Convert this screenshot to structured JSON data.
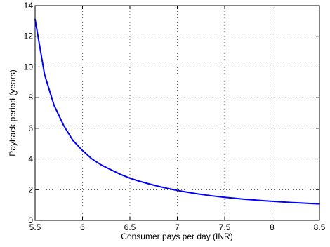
{
  "chart_data": {
    "type": "line",
    "title": "",
    "xlabel": "Consumer pays per day (INR)",
    "ylabel": "Payback period (years)",
    "xlim": [
      5.5,
      8.5
    ],
    "ylim": [
      0,
      14
    ],
    "xticks": [
      5.5,
      6,
      6.5,
      7,
      7.5,
      8,
      8.5
    ],
    "yticks": [
      0,
      2,
      4,
      6,
      8,
      10,
      12,
      14
    ],
    "xtick_labels": [
      "5.5",
      "6",
      "6.5",
      "7",
      "7.5",
      "8",
      "8.5"
    ],
    "ytick_labels": [
      "0",
      "2",
      "4",
      "6",
      "8",
      "10",
      "12",
      "14"
    ],
    "grid": true,
    "series": [
      {
        "color": "#0000ff",
        "x": [
          5.5,
          5.6,
          5.7,
          5.8,
          5.9,
          6.0,
          6.1,
          6.2,
          6.3,
          6.4,
          6.5,
          6.6,
          6.7,
          6.8,
          6.9,
          7.0,
          7.1,
          7.2,
          7.3,
          7.4,
          7.5,
          7.6,
          7.7,
          7.8,
          7.9,
          8.0,
          8.1,
          8.2,
          8.3,
          8.4,
          8.5
        ],
        "y": [
          13.1,
          9.5,
          7.5,
          6.2,
          5.2,
          4.55,
          4.0,
          3.6,
          3.3,
          3.0,
          2.75,
          2.55,
          2.38,
          2.22,
          2.08,
          1.95,
          1.84,
          1.74,
          1.65,
          1.57,
          1.5,
          1.44,
          1.38,
          1.33,
          1.28,
          1.24,
          1.2,
          1.16,
          1.13,
          1.1,
          1.07
        ]
      }
    ]
  }
}
